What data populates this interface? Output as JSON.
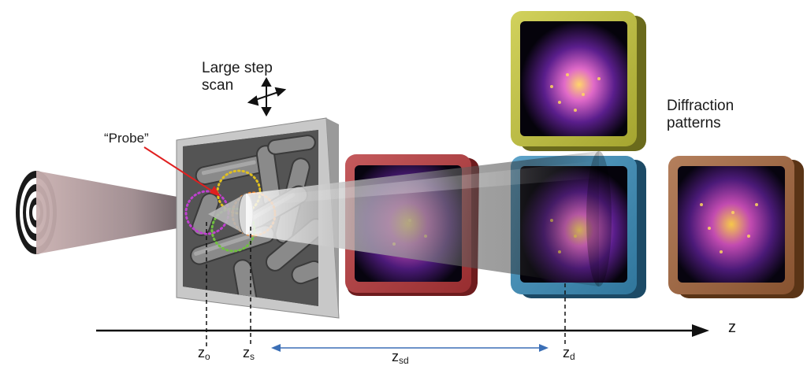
{
  "labels": {
    "large_step_scan_line1": "Large step",
    "large_step_scan_line2": "scan",
    "probe": "“Probe”",
    "diffraction_line1": "Diffraction",
    "diffraction_line2": "patterns",
    "z_axis": "z",
    "z_o_main": "z",
    "z_o_sub": "o",
    "z_s_main": "z",
    "z_s_sub": "s",
    "z_sd_main": "z",
    "z_sd_sub": "sd",
    "z_d_main": "z",
    "z_d_sub": "d"
  },
  "colors": {
    "frame_red": "#b8373a",
    "frame_yellow": "#c8c83a",
    "frame_blue": "#3a8fbd",
    "frame_brown": "#a4643a",
    "arrow_red": "#e02020",
    "sd_arrow": "#3b6fb6",
    "ring_yellow": "#e0c020",
    "ring_purple": "#c040d0",
    "ring_green": "#70c040",
    "ring_orange": "#f08020"
  },
  "icons": {
    "four_way_arrow": "move-arrows-icon",
    "beam_source": "concentric-rings-icon"
  }
}
